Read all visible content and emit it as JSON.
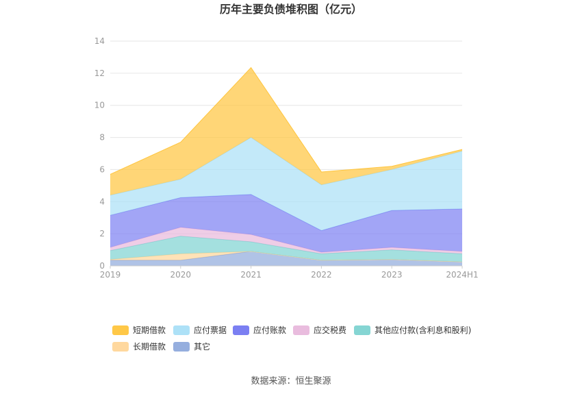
{
  "chart_data": {
    "type": "area",
    "title": "历年主要负债堆积图（亿元）",
    "categories": [
      "2019",
      "2020",
      "2021",
      "2022",
      "2023",
      "2024H1"
    ],
    "ylim": [
      0,
      14
    ],
    "yticks": [
      0,
      2,
      4,
      6,
      8,
      10,
      12,
      14
    ],
    "stacked": true,
    "series": [
      {
        "name": "其它",
        "color": "#8FAADC",
        "values": [
          0.35,
          0.35,
          0.9,
          0.35,
          0.4,
          0.25
        ]
      },
      {
        "name": "长期借款",
        "color": "#FFD699",
        "values": [
          0.05,
          0.4,
          0.0,
          0.0,
          0.0,
          0.0
        ]
      },
      {
        "name": "其他应付款(含利息和股利)",
        "color": "#7ED3D1",
        "values": [
          0.55,
          1.1,
          0.6,
          0.4,
          0.6,
          0.5
        ]
      },
      {
        "name": "应交税费",
        "color": "#E8B8DC",
        "values": [
          0.2,
          0.55,
          0.45,
          0.1,
          0.15,
          0.15
        ]
      },
      {
        "name": "应付账款",
        "color": "#7B7FF2",
        "values": [
          2.0,
          1.85,
          2.5,
          1.35,
          2.3,
          2.65
        ]
      },
      {
        "name": "应付票据",
        "color": "#A9DFF7",
        "values": [
          1.25,
          1.15,
          3.55,
          2.85,
          2.55,
          3.6
        ]
      },
      {
        "name": "短期借款",
        "color": "#FFC53D",
        "values": [
          1.3,
          2.3,
          4.35,
          0.8,
          0.2,
          0.1
        ]
      }
    ],
    "legend": [
      "短期借款",
      "应付票据",
      "应付账款",
      "应交税费",
      "其他应付款(含利息和股利)",
      "长期借款",
      "其它"
    ],
    "legend_position": "bottom",
    "grid": true
  },
  "source": "数据来源：恒生聚源"
}
